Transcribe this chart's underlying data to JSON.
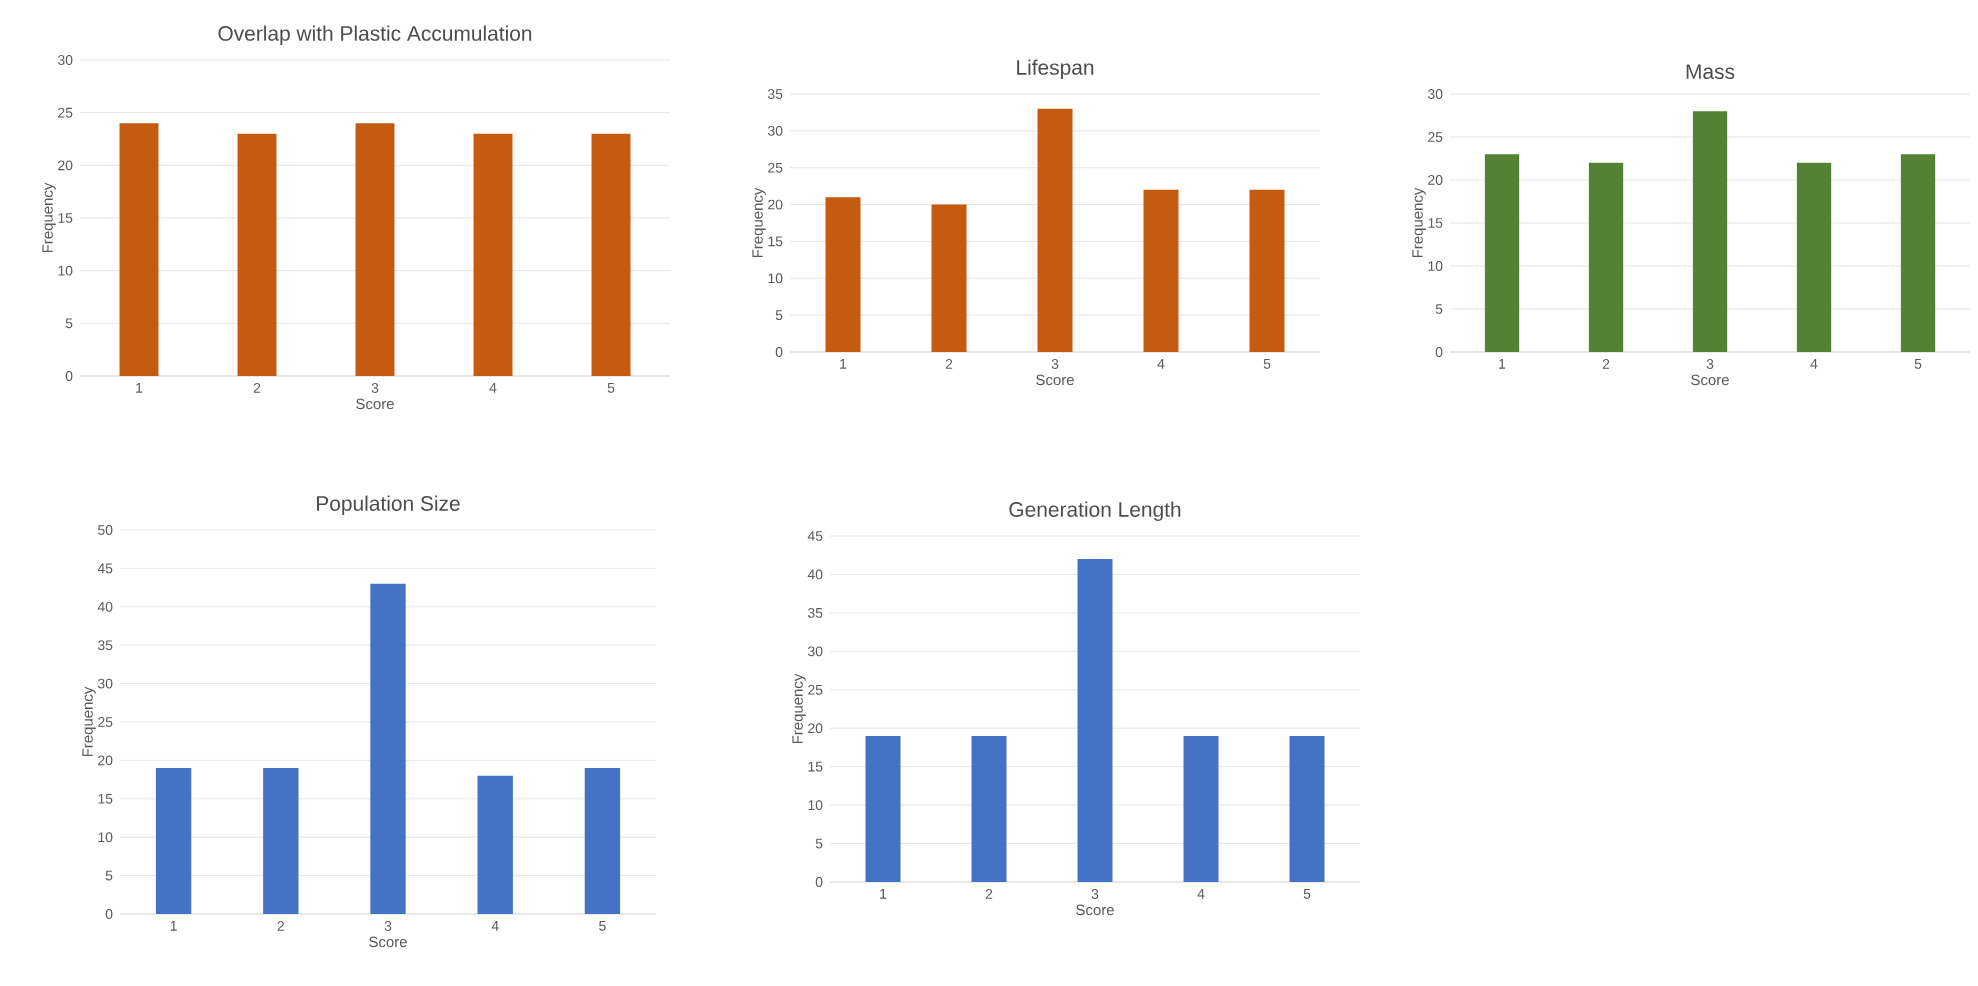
{
  "chart_data": [
    {
      "type": "bar",
      "title": "Overlap with Plastic Accumulation",
      "xlabel": "Score",
      "ylabel": "Frequency",
      "categories": [
        "1",
        "2",
        "3",
        "4",
        "5"
      ],
      "values": [
        24,
        23,
        24,
        23,
        23
      ],
      "color": "#c55a11",
      "ylim": [
        0,
        30
      ],
      "yticks": [
        0,
        5,
        10,
        15,
        20,
        25,
        30
      ],
      "grid": "y"
    },
    {
      "type": "bar",
      "title": "Lifespan",
      "xlabel": "Score",
      "ylabel": "Frequency",
      "categories": [
        "1",
        "2",
        "3",
        "4",
        "5"
      ],
      "values": [
        21,
        20,
        33,
        22,
        22
      ],
      "color": "#c55a11",
      "ylim": [
        0,
        35
      ],
      "yticks": [
        0,
        5,
        10,
        15,
        20,
        25,
        30,
        35
      ],
      "grid": "y"
    },
    {
      "type": "bar",
      "title": "Mass",
      "xlabel": "Score",
      "ylabel": "Frequency",
      "categories": [
        "1",
        "2",
        "3",
        "4",
        "5"
      ],
      "values": [
        23,
        22,
        28,
        22,
        23
      ],
      "color": "#548235",
      "ylim": [
        0,
        30
      ],
      "yticks": [
        0,
        5,
        10,
        15,
        20,
        25,
        30
      ],
      "grid": "y"
    },
    {
      "type": "bar",
      "title": "Population Size",
      "xlabel": "Score",
      "ylabel": "Frequency",
      "categories": [
        "1",
        "2",
        "3",
        "4",
        "5"
      ],
      "values": [
        19,
        19,
        43,
        18,
        19
      ],
      "color": "#4472c4",
      "ylim": [
        0,
        50
      ],
      "yticks": [
        0,
        5,
        10,
        15,
        20,
        25,
        30,
        35,
        40,
        45,
        50
      ],
      "grid": "y"
    },
    {
      "type": "bar",
      "title": "Generation Length",
      "xlabel": "Score",
      "ylabel": "Frequency",
      "categories": [
        "1",
        "2",
        "3",
        "4",
        "5"
      ],
      "values": [
        19,
        19,
        42,
        19,
        19
      ],
      "color": "#4472c4",
      "ylim": [
        0,
        45
      ],
      "yticks": [
        0,
        5,
        10,
        15,
        20,
        25,
        30,
        35,
        40,
        45
      ],
      "grid": "y"
    }
  ]
}
